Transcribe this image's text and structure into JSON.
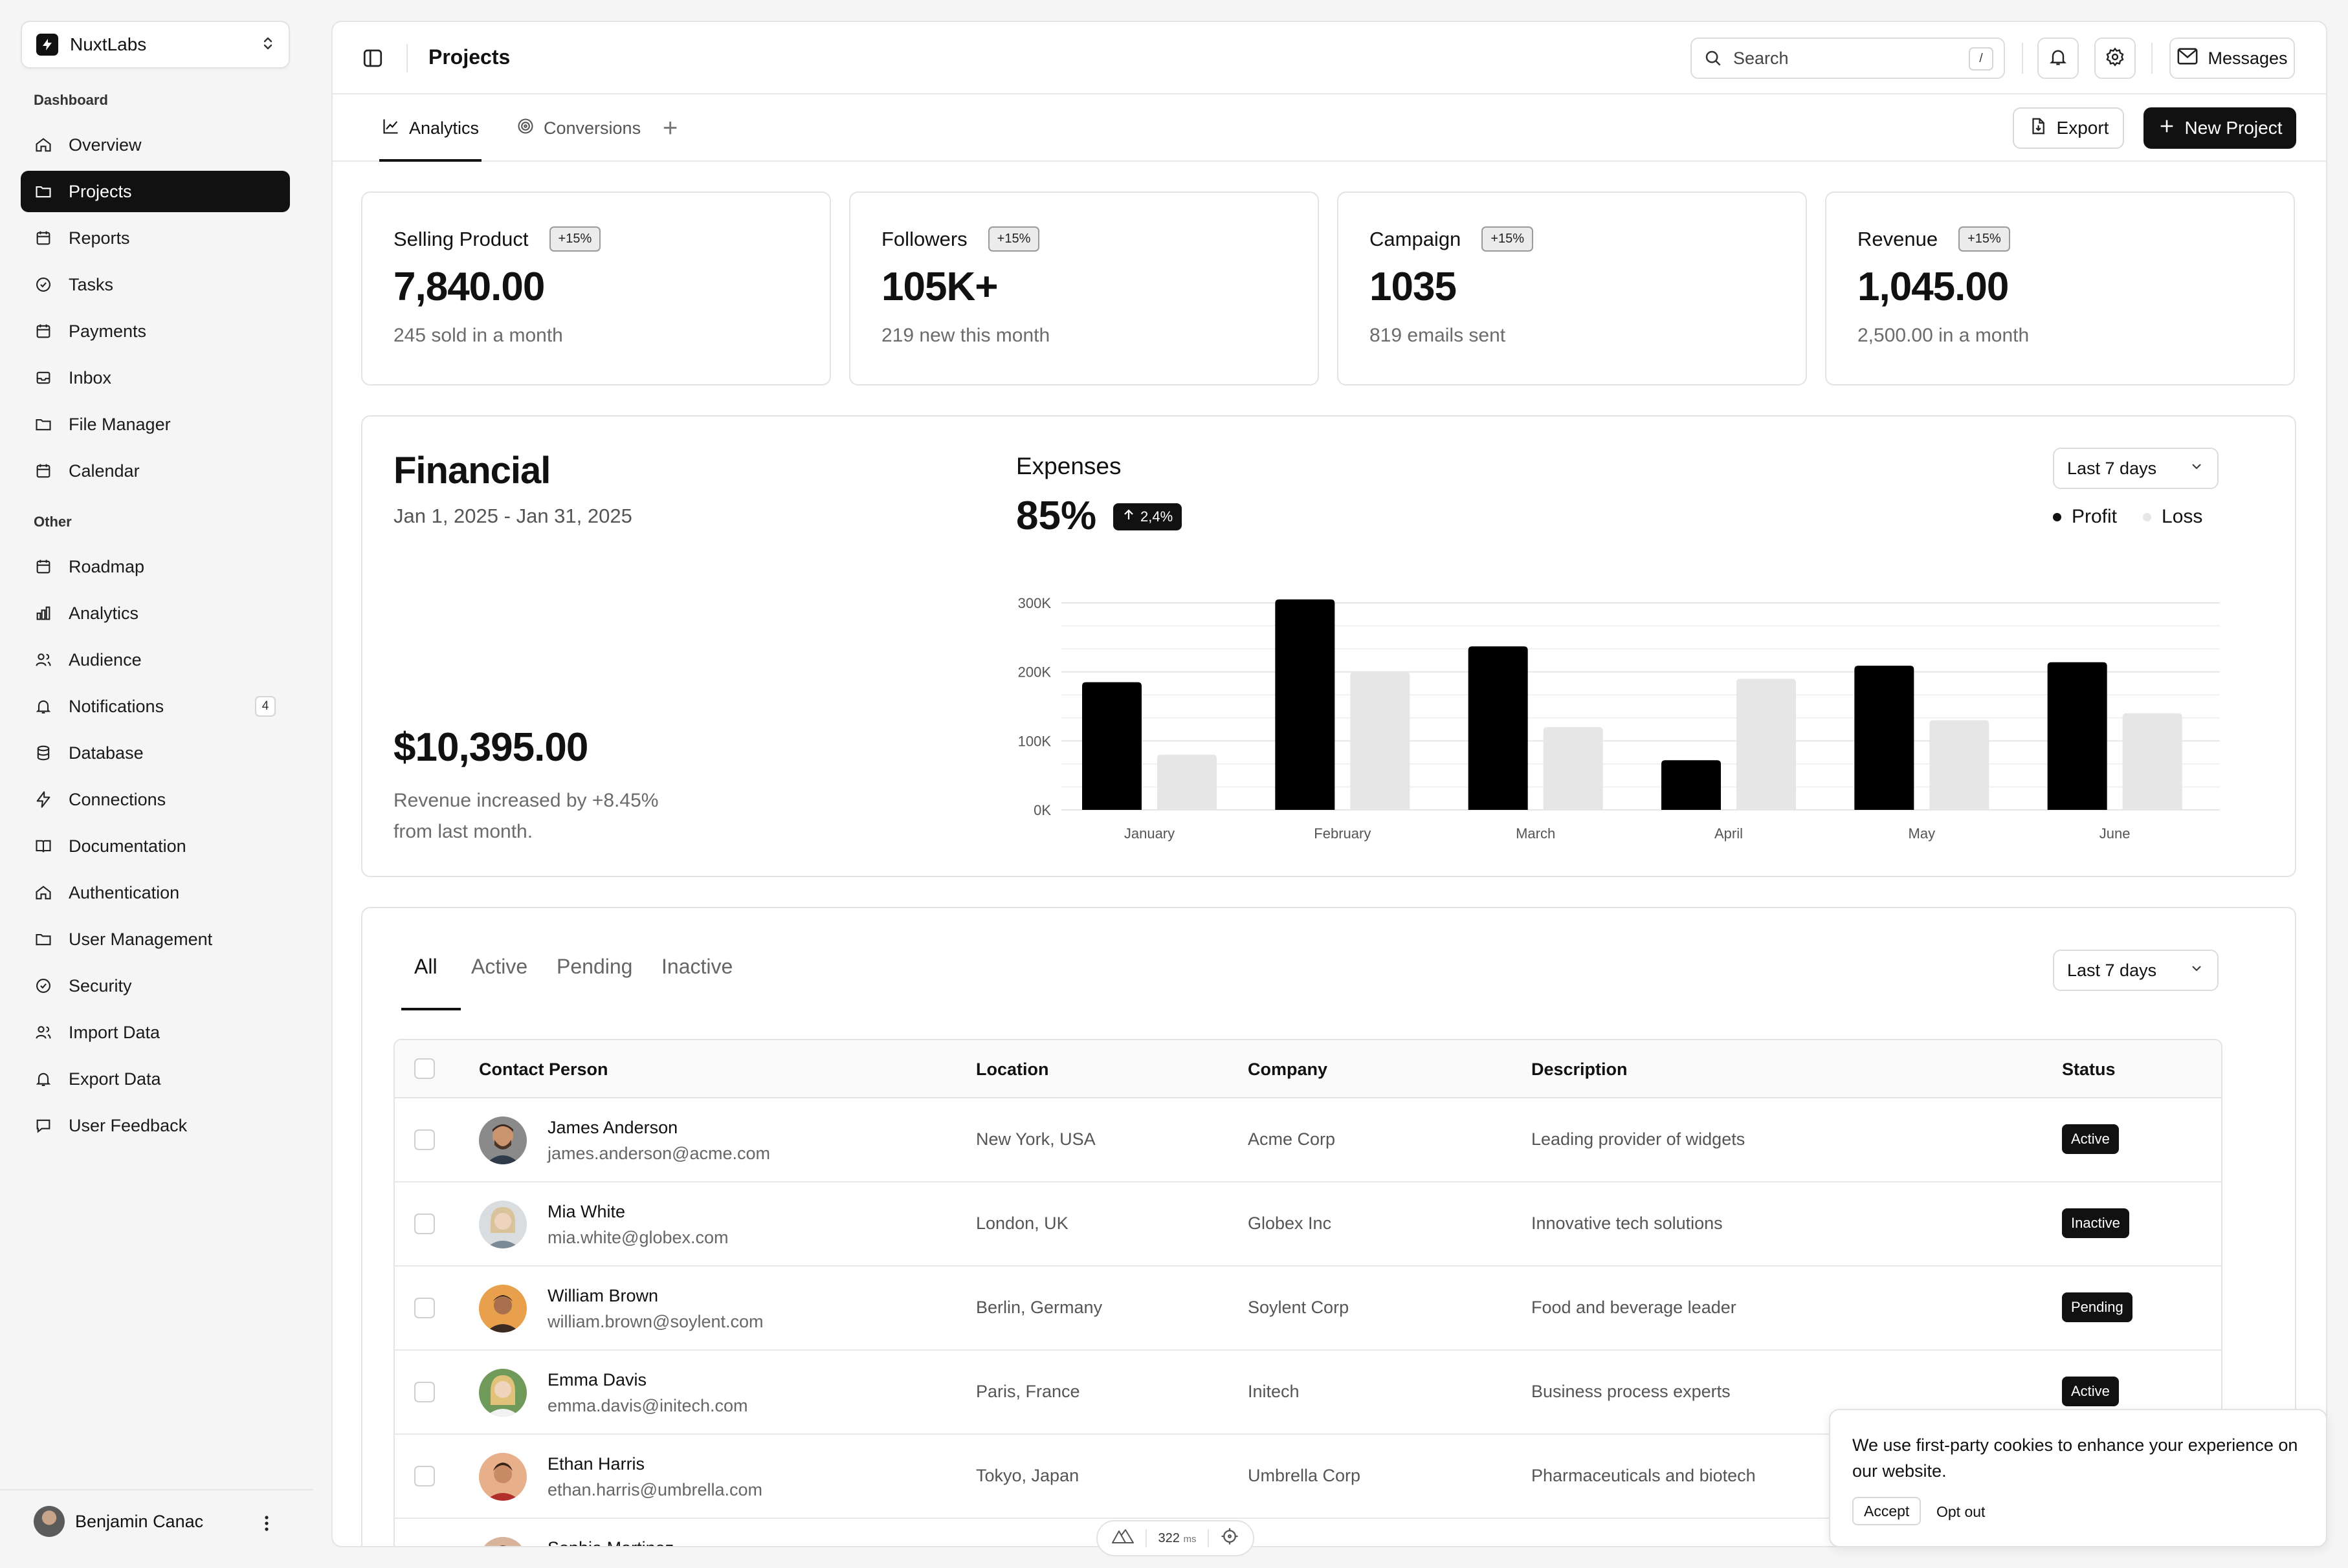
{
  "team": {
    "name": "NuxtLabs"
  },
  "sidebar": {
    "section_dashboard": "Dashboard",
    "section_other": "Other",
    "items": [
      {
        "label": "Overview",
        "icon": "home-icon"
      },
      {
        "label": "Projects",
        "icon": "folder-icon"
      },
      {
        "label": "Reports",
        "icon": "calendar-icon"
      },
      {
        "label": "Tasks",
        "icon": "check-circle-icon"
      },
      {
        "label": "Payments",
        "icon": "calendar-icon"
      },
      {
        "label": "Inbox",
        "icon": "inbox-icon"
      },
      {
        "label": "File Manager",
        "icon": "folder-icon"
      },
      {
        "label": "Calendar",
        "icon": "calendar-icon"
      }
    ],
    "other_items": [
      {
        "label": "Roadmap",
        "icon": "calendar-icon"
      },
      {
        "label": "Analytics",
        "icon": "bar-chart-icon"
      },
      {
        "label": "Audience",
        "icon": "users-icon"
      },
      {
        "label": "Notifications",
        "icon": "bell-icon",
        "badge": "4"
      },
      {
        "label": "Database",
        "icon": "database-icon"
      },
      {
        "label": "Connections",
        "icon": "bolt-icon"
      },
      {
        "label": "Documentation",
        "icon": "book-icon"
      },
      {
        "label": "Authentication",
        "icon": "home-icon"
      },
      {
        "label": "User Management",
        "icon": "folder-icon"
      },
      {
        "label": "Security",
        "icon": "check-circle-icon"
      },
      {
        "label": "Import Data",
        "icon": "users-icon"
      },
      {
        "label": "Export Data",
        "icon": "bell-icon"
      },
      {
        "label": "User Feedback",
        "icon": "chat-icon"
      }
    ],
    "active_item": "Projects",
    "user": {
      "name": "Benjamin Canac"
    }
  },
  "topbar": {
    "title": "Projects",
    "search_placeholder": "Search",
    "search_shortcut": "/",
    "messages_label": "Messages"
  },
  "tabs": {
    "items": [
      {
        "label": "Analytics",
        "icon": "line-chart-icon"
      },
      {
        "label": "Conversions",
        "icon": "target-icon"
      }
    ],
    "add": "+",
    "export_label": "Export",
    "new_project_label": "New Project"
  },
  "stats": [
    {
      "title": "Selling Product",
      "badge": "+15%",
      "value": "7,840.00",
      "sub": "245 sold in a month"
    },
    {
      "title": "Followers",
      "badge": "+15%",
      "value": "105K+",
      "sub": "219 new this month"
    },
    {
      "title": "Campaign",
      "badge": "+15%",
      "value": "1035",
      "sub": "819 emails sent"
    },
    {
      "title": "Revenue",
      "badge": "+15%",
      "value": "1,045.00",
      "sub": "2,500.00 in a month"
    }
  ],
  "financial": {
    "title": "Financial",
    "range": "Jan 1, 2025 - Jan 31, 2025",
    "amount": "$10,395.00",
    "note": "Revenue increased by +8.45% from last month.",
    "expenses_title": "Expenses",
    "expenses_value": "85%",
    "expenses_change": "2,4%",
    "period": "Last 7 days"
  },
  "chart_data": {
    "type": "bar",
    "categories": [
      "January",
      "February",
      "March",
      "April",
      "May",
      "June"
    ],
    "series": [
      {
        "name": "Profit",
        "color": "#000000",
        "values": [
          185000,
          305000,
          237000,
          72000,
          209000,
          214000
        ]
      },
      {
        "name": "Loss",
        "color": "#e6e6e6",
        "values": [
          80000,
          200000,
          120000,
          190000,
          130000,
          140000
        ]
      }
    ],
    "yticks": [
      "0K",
      "100K",
      "200K",
      "300K"
    ],
    "ylim": [
      0,
      300000
    ],
    "grid": true,
    "legend": "top-right"
  },
  "table": {
    "filters": [
      "All",
      "Active",
      "Pending",
      "Inactive"
    ],
    "period": "Last 7 days",
    "columns": [
      "Contact Person",
      "Location",
      "Company",
      "Description",
      "Status"
    ],
    "rows": [
      {
        "name": "James Anderson",
        "email": "james.anderson@acme.com",
        "location": "New York, USA",
        "company": "Acme Corp",
        "description": "Leading provider of widgets",
        "status": "Active"
      },
      {
        "name": "Mia White",
        "email": "mia.white@globex.com",
        "location": "London, UK",
        "company": "Globex Inc",
        "description": "Innovative tech solutions",
        "status": "Inactive"
      },
      {
        "name": "William Brown",
        "email": "william.brown@soylent.com",
        "location": "Berlin, Germany",
        "company": "Soylent Corp",
        "description": "Food and beverage leader",
        "status": "Pending"
      },
      {
        "name": "Emma Davis",
        "email": "emma.davis@initech.com",
        "location": "Paris, France",
        "company": "Initech",
        "description": "Business process experts",
        "status": "Active"
      },
      {
        "name": "Ethan Harris",
        "email": "ethan.harris@umbrella.com",
        "location": "Tokyo, Japan",
        "company": "Umbrella Corp",
        "description": "Pharmaceuticals and biotech",
        "status": ""
      },
      {
        "name": "Sophia Martinez",
        "email": "",
        "location": "",
        "company": "",
        "description": "",
        "status": ""
      }
    ]
  },
  "perf": {
    "value": "322",
    "unit": "ms"
  },
  "cookie": {
    "text": "We use first-party cookies to enhance your experience on our website.",
    "accept": "Accept",
    "optout": "Opt out"
  }
}
